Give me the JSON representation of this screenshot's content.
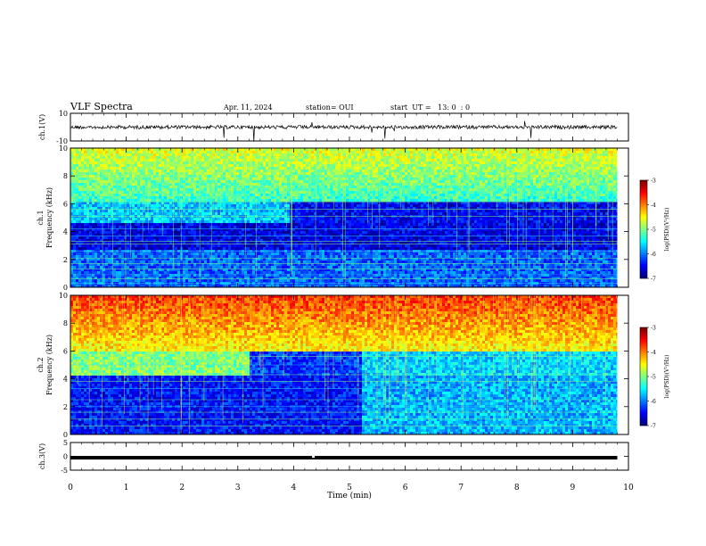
{
  "header": {
    "title": "VLF Spectra",
    "date": "Apr. 11, 2024",
    "station": "station= OUI",
    "start": "start  UT =   13: 0  : 0"
  },
  "chart_data": [
    {
      "type": "line",
      "ylabel": "ch.1(V)",
      "ylim": [
        -10,
        10
      ],
      "yticks": [
        "10",
        "-10"
      ],
      "series": [
        {
          "values_description": "",
          "baseline": 0
        }
      ]
    },
    {
      "type": "heatmap",
      "ylabel": "ch.1",
      "ylabel2": "Frequency (kHz)",
      "ylim": [
        0,
        10
      ],
      "yticks": [
        "0",
        "2",
        "4",
        "6",
        "8",
        "10"
      ],
      "colorbar": {
        "label": "log(PSD)(V²/Hz)",
        "range": [
          -7,
          -3
        ],
        "ticks": [
          "-3",
          "-4",
          "-5",
          "-6",
          "-7"
        ]
      },
      "xlim": [
        0,
        9.8
      ]
    },
    {
      "type": "heatmap",
      "ylabel": "ch.2",
      "ylabel2": "Frequency (kHz)",
      "ylim": [
        0,
        10
      ],
      "yticks": [
        "0",
        "2",
        "4",
        "6",
        "8",
        "10"
      ],
      "colorbar": {
        "label": "log(PSD)(V²/Hz)",
        "range": [
          -7,
          -3
        ],
        "ticks": [
          "-3",
          "-4",
          "-5",
          "-6",
          "-7"
        ]
      },
      "xlim": [
        0,
        9.8
      ]
    },
    {
      "type": "line",
      "ylabel": "ch.3(V)",
      "ylim": [
        -5,
        5
      ],
      "yticks": [
        "5",
        "0",
        "-5"
      ],
      "series": [
        {
          "baseline": -0.5
        }
      ]
    }
  ],
  "xaxis": {
    "label": "Time (min)",
    "xlim": [
      0,
      10
    ],
    "ticks": [
      "0",
      "1",
      "2",
      "3",
      "4",
      "5",
      "6",
      "7",
      "8",
      "9",
      "10"
    ]
  }
}
